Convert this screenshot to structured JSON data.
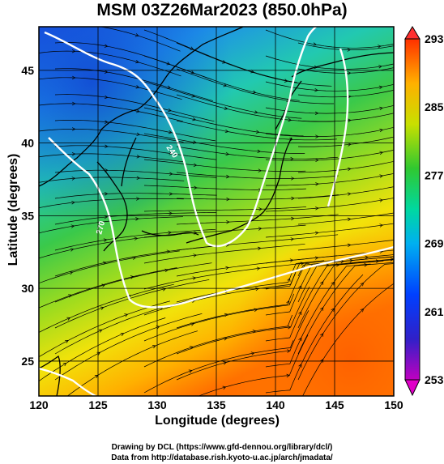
{
  "title": "MSM 03Z26Mar2023 (850.0hPa)",
  "axes": {
    "xlabel": "Longitude (degrees)",
    "ylabel": "Latitude  (degrees)",
    "x_ticks": [
      "120",
      "125",
      "130",
      "135",
      "140",
      "145",
      "150"
    ],
    "y_ticks": [
      "25",
      "30",
      "35",
      "40",
      "45"
    ]
  },
  "colorbar": {
    "ticks": [
      "253",
      "261",
      "269",
      "277",
      "285",
      "293"
    ],
    "min": 253,
    "max": 293
  },
  "contour_labels": [
    "240",
    "270"
  ],
  "credits": {
    "line1": "Drawing by DCL (https://www.gfd-dennou.org/library/dcl/)",
    "line2": "Data from http://database.rish.kyoto-u.ac.jp/arch/jmadata/"
  },
  "colors": {
    "cold": "#0050e0",
    "mid": "#22cc44",
    "warm": "#ff7a00",
    "contour": "#ffffff"
  }
}
